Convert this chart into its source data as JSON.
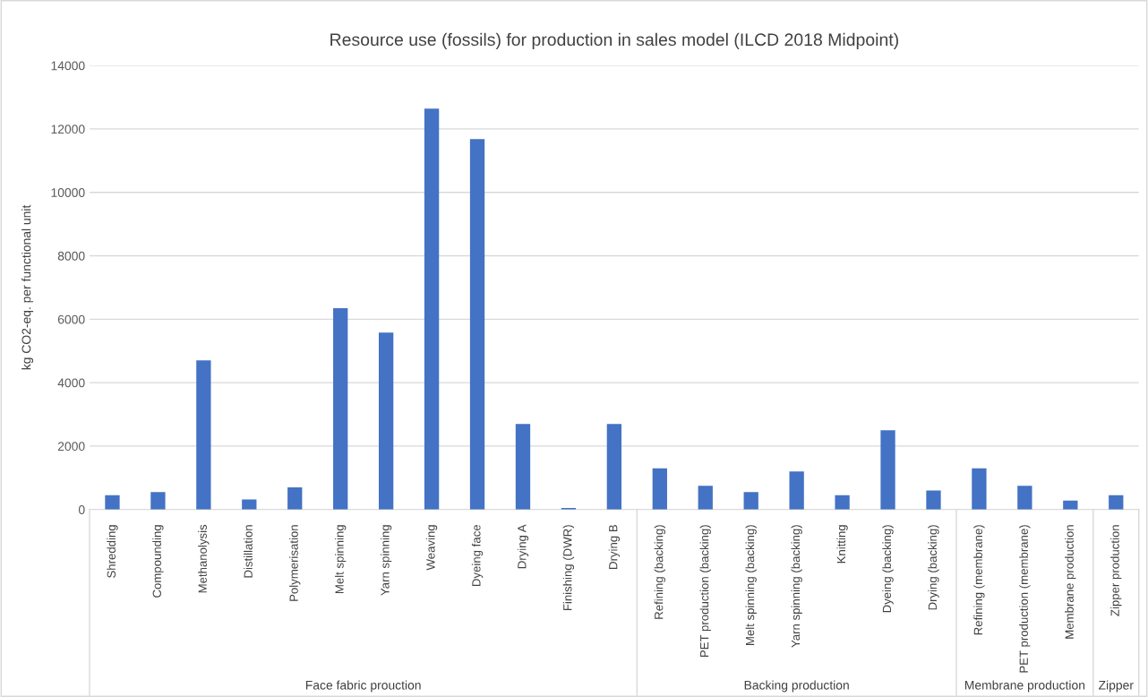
{
  "chart_data": {
    "type": "bar",
    "title": "Resource use (fossils) for production in sales model (ILCD 2018 Midpoint)",
    "ylabel": "kg CO2-eq. per functional unit",
    "categories": [
      "Shredding",
      "Compounding",
      "Methanolysis",
      "Distillation",
      "Polymerisation",
      "Melt spinning",
      "Yarn spinning",
      "Weaving",
      "Dyeing face",
      "Drying A",
      "Finishing (DWR)",
      "Drying B",
      "Refining (backing)",
      "PET production (backing)",
      "Melt spinning (backing)",
      "Yarn spinning (backing)",
      "Knitting",
      "Dyeing (backing)",
      "Drying (backing)",
      "Refining (membrane)",
      "PET production (membrane)",
      "Membrane production",
      "Zipper production"
    ],
    "values": [
      450,
      550,
      4700,
      320,
      700,
      6350,
      5580,
      12640,
      11680,
      2700,
      50,
      2700,
      1300,
      750,
      550,
      1200,
      450,
      2500,
      600,
      1300,
      750,
      280,
      450
    ],
    "color": "#4472c4",
    "ylim": [
      0,
      14000
    ],
    "yticks": [
      0,
      2000,
      4000,
      6000,
      8000,
      10000,
      12000,
      14000
    ],
    "grid": "y",
    "annotations": [
      "Face fabric prouction",
      "Backing production",
      "Membrane production",
      "Zipper"
    ]
  }
}
